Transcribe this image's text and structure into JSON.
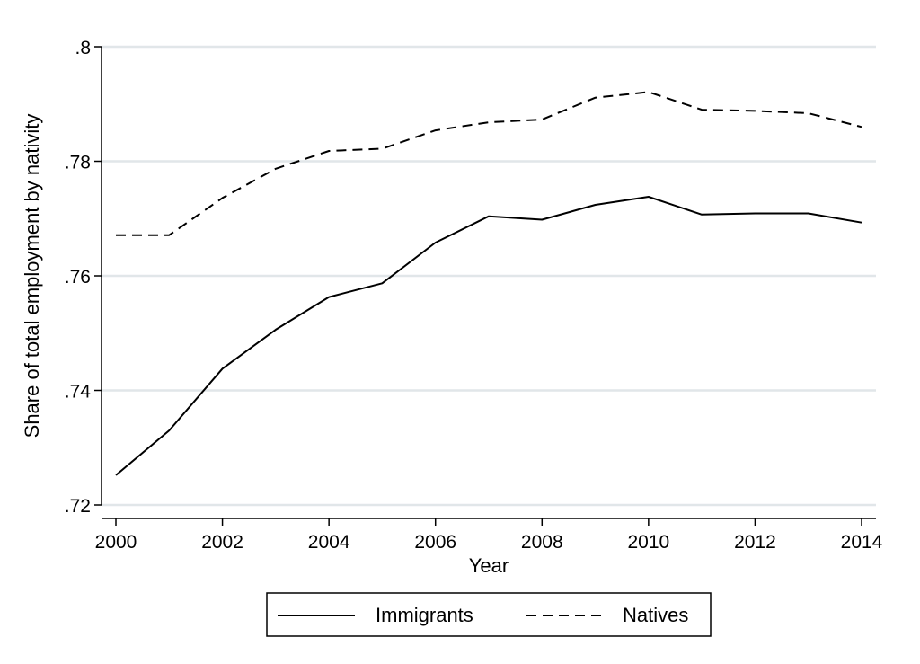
{
  "chart_data": {
    "type": "line",
    "title": "",
    "xlabel": "Year",
    "ylabel": "Share of total employment by nativity",
    "x": [
      2000,
      2001,
      2002,
      2003,
      2004,
      2005,
      2006,
      2007,
      2008,
      2009,
      2010,
      2011,
      2012,
      2013,
      2014
    ],
    "xlim": [
      2000,
      2014
    ],
    "ylim": [
      0.72,
      0.8
    ],
    "x_ticks": [
      2000,
      2002,
      2004,
      2006,
      2008,
      2010,
      2012,
      2014
    ],
    "x_tick_labels": [
      "2000",
      "2002",
      "2004",
      "2006",
      "2008",
      "2010",
      "2012",
      "2014"
    ],
    "y_ticks": [
      0.72,
      0.74,
      0.76,
      0.78,
      0.8
    ],
    "y_tick_labels": [
      ".72",
      ".74",
      ".76",
      ".78",
      ".8"
    ],
    "grid": "horizontal",
    "legend_position": "bottom",
    "series": [
      {
        "name": "Immigrants",
        "style": "solid",
        "color": "#000000",
        "values": [
          0.7252,
          0.733,
          0.7438,
          0.7506,
          0.7563,
          0.7587,
          0.7658,
          0.7704,
          0.7698,
          0.7724,
          0.7738,
          0.7707,
          0.7709,
          0.7709,
          0.7693
        ]
      },
      {
        "name": "Natives",
        "style": "dashed",
        "color": "#000000",
        "values": [
          0.7671,
          0.7671,
          0.7736,
          0.7787,
          0.7818,
          0.7822,
          0.7854,
          0.7868,
          0.7873,
          0.7911,
          0.7921,
          0.789,
          0.7888,
          0.7884,
          0.786
        ]
      }
    ]
  },
  "colors": {
    "background": "#ffffff",
    "gridline": "#e1e6e9",
    "line": "#000000"
  }
}
